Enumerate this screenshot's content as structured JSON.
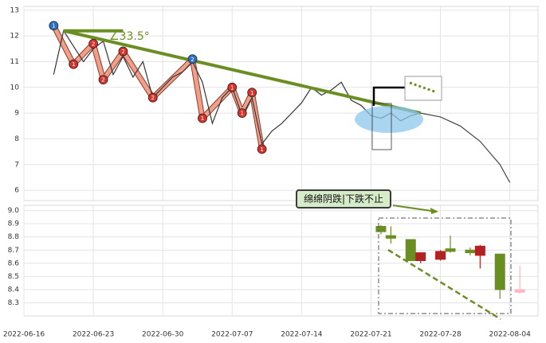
{
  "chart_data": [
    {
      "type": "line",
      "ylim": [
        5.6,
        13.15
      ],
      "yticks": [
        6,
        7,
        8,
        9,
        10,
        11,
        12,
        13
      ],
      "grid": true,
      "series": [
        {
          "color": "#333333",
          "x": [
            "2022-06-19",
            "2022-06-20",
            "2022-06-21",
            "2022-06-22",
            "2022-06-23",
            "2022-06-24",
            "2022-06-25",
            "2022-06-26",
            "2022-06-27",
            "2022-06-28",
            "2022-06-29",
            "2022-06-30",
            "2022-07-01",
            "2022-07-02",
            "2022-07-03",
            "2022-07-04",
            "2022-07-05",
            "2022-07-06",
            "2022-07-07",
            "2022-07-08",
            "2022-07-09",
            "2022-07-10",
            "2022-07-11",
            "2022-07-12",
            "2022-07-13",
            "2022-07-14",
            "2022-07-15",
            "2022-07-16",
            "2022-07-17",
            "2022-07-18",
            "2022-07-19",
            "2022-07-20",
            "2022-07-21",
            "2022-07-22",
            "2022-07-23",
            "2022-07-24",
            "2022-07-25",
            "2022-07-26"
          ],
          "values": [
            10.5,
            12.2,
            11.6,
            11.0,
            11.5,
            11.8,
            10.5,
            11.2,
            10.4,
            11.0,
            9.6,
            10.0,
            10.4,
            10.6,
            11.0,
            10.2,
            8.6,
            9.6,
            10.0,
            8.9,
            9.6,
            7.8,
            8.3,
            8.6,
            9.0,
            9.4,
            10.0,
            9.7,
            9.9,
            10.2,
            9.5,
            9.3,
            8.9,
            8.8,
            9.0,
            8.7,
            8.9,
            9.0
          ]
        },
        {
          "color": "#444444",
          "x": [
            "2022-07-26",
            "2022-07-28",
            "2022-07-30",
            "2022-08-01",
            "2022-08-03",
            "2022-08-04"
          ],
          "values": [
            9.0,
            8.85,
            8.5,
            7.9,
            7.0,
            6.3
          ]
        }
      ],
      "trend_lines": [
        {
          "color": "#6b8e23",
          "x": [
            "2022-06-20",
            "2022-07-26"
          ],
          "values": [
            12.2,
            9.0
          ]
        },
        {
          "color": "#6b8e23",
          "x": [
            "2022-06-20",
            "2022-06-26"
          ],
          "values": [
            12.2,
            12.2
          ]
        }
      ],
      "markers": [
        {
          "x": "2022-06-19",
          "value": 12.4,
          "label": "1",
          "color": "#2a6fc9"
        },
        {
          "x": "2022-06-21",
          "value": 10.9,
          "label": "1",
          "color": "#d8322a"
        },
        {
          "x": "2022-06-23",
          "value": 11.7,
          "label": "2",
          "color": "#d8322a"
        },
        {
          "x": "2022-06-24",
          "value": 10.3,
          "label": "2",
          "color": "#d8322a"
        },
        {
          "x": "2022-06-26",
          "value": 11.4,
          "label": "2",
          "color": "#d8322a"
        },
        {
          "x": "2022-06-29",
          "value": 9.6,
          "label": "2",
          "color": "#d8322a"
        },
        {
          "x": "2022-07-03",
          "value": 11.1,
          "label": "2",
          "color": "#2a6fc9"
        },
        {
          "x": "2022-07-04",
          "value": 8.8,
          "label": "1",
          "color": "#d8322a"
        },
        {
          "x": "2022-07-07",
          "value": 10.0,
          "label": "1",
          "color": "#d8322a"
        },
        {
          "x": "2022-07-08",
          "value": 9.0,
          "label": "1",
          "color": "#d8322a"
        },
        {
          "x": "2022-07-09",
          "value": 9.8,
          "label": "1",
          "color": "#d8322a"
        },
        {
          "x": "2022-07-10",
          "value": 7.6,
          "label": "1",
          "color": "#d8322a"
        }
      ],
      "angle_label": "∠33.5°"
    },
    {
      "type": "candlestick",
      "ylim": [
        8.2,
        9.04
      ],
      "yticks": [
        {
          "value": 8.3,
          "label": "8.3"
        },
        {
          "value": 8.4,
          "label": "8.4"
        },
        {
          "value": 8.5,
          "label": "8.5"
        },
        {
          "value": 8.6,
          "label": "8.6"
        },
        {
          "value": 8.7,
          "label": "8.7"
        },
        {
          "value": 8.8,
          "label": "8.8"
        },
        {
          "value": 8.9,
          "label": "8.9"
        },
        {
          "value": 9.0,
          "label": "9.0"
        }
      ],
      "xlim": [
        "2022-06-16",
        "2022-08-07"
      ],
      "xticks": [
        "2022-06-16",
        "2022-06-23",
        "2022-06-30",
        "2022-07-07",
        "2022-07-14",
        "2022-07-21",
        "2022-07-28",
        "2022-08-04"
      ],
      "grid": true,
      "x": [
        "2022-07-22",
        "2022-07-23",
        "2022-07-25",
        "2022-07-26",
        "2022-07-28",
        "2022-07-29",
        "2022-07-31",
        "2022-08-01",
        "2022-08-03",
        "2022-08-05"
      ],
      "open": [
        8.88,
        8.81,
        8.78,
        8.62,
        8.63,
        8.71,
        8.7,
        8.66,
        8.67,
        8.38
      ],
      "close": [
        8.84,
        8.79,
        8.62,
        8.68,
        8.69,
        8.69,
        8.68,
        8.73,
        8.4,
        8.4
      ],
      "high": [
        8.89,
        8.88,
        8.78,
        8.68,
        8.7,
        8.81,
        8.72,
        8.74,
        8.67,
        8.58
      ],
      "low": [
        8.82,
        8.75,
        8.62,
        8.6,
        8.62,
        8.68,
        8.66,
        8.56,
        8.33,
        8.37
      ],
      "colors": [
        "#6b8e23",
        "#6b8e23",
        "#6b8e23",
        "#b22222",
        "#b22222",
        "#6b8e23",
        "#6b8e23",
        "#b22222",
        "#6b8e23",
        "#ffb6c1"
      ],
      "annotation": "绵绵阴跌|下跌不止"
    }
  ]
}
